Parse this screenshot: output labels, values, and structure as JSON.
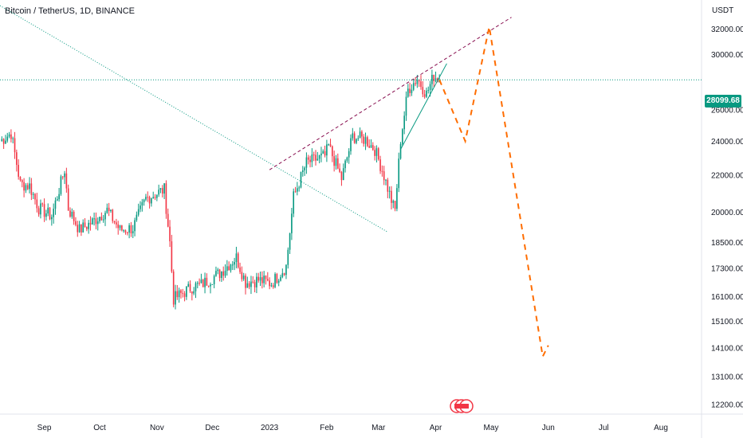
{
  "header": {
    "title": "Bitcoin / TetherUS, 1D, BINANCE",
    "unit": "USDT"
  },
  "price_badge": "28099.68",
  "colors": {
    "up": "#089981",
    "down": "#f23645",
    "projection": "#ff6d00",
    "channel": "#880e4f",
    "trendline": "#089981",
    "price_line": "#089981"
  },
  "chart_data": {
    "type": "candlestick",
    "title": "Bitcoin / TetherUS, 1D, BINANCE",
    "y_axis": {
      "unit": "USDT",
      "scale": "log",
      "ticks": [
        "32000.00",
        "30000.00",
        "26000.00",
        "24000.00",
        "22000.00",
        "20000.00",
        "18500.00",
        "17300.00",
        "16100.00",
        "15100.00",
        "14100.00",
        "13100.00",
        "12200.00"
      ],
      "range": [
        11900,
        34500
      ]
    },
    "x_axis": {
      "ticks": [
        "Sep",
        "Oct",
        "Nov",
        "Dec",
        "2023",
        "Feb",
        "Mar",
        "Apr",
        "May",
        "Jun",
        "Jul",
        "Aug"
      ],
      "tick_dates": [
        "2022-09-01",
        "2022-10-01",
        "2022-11-01",
        "2022-12-01",
        "2023-01-01",
        "2023-02-01",
        "2023-03-01",
        "2023-04-01",
        "2023-05-01",
        "2023-06-01",
        "2023-07-01",
        "2023-08-01"
      ],
      "range": [
        "2022-08-08",
        "2023-08-23"
      ]
    },
    "last_price": 28099.68,
    "price_path": [
      [
        "2022-08-08",
        24000
      ],
      [
        "2022-08-14",
        24500
      ],
      [
        "2022-08-19",
        21500
      ],
      [
        "2022-08-24",
        21400
      ],
      [
        "2022-08-29",
        20200
      ],
      [
        "2022-09-05",
        19800
      ],
      [
        "2022-09-12",
        22300
      ],
      [
        "2022-09-14",
        20200
      ],
      [
        "2022-09-20",
        19100
      ],
      [
        "2022-09-27",
        19500
      ],
      [
        "2022-10-05",
        20100
      ],
      [
        "2022-10-12",
        19100
      ],
      [
        "2022-10-19",
        19200
      ],
      [
        "2022-10-26",
        20700
      ],
      [
        "2022-11-05",
        21200
      ],
      [
        "2022-11-08",
        18500
      ],
      [
        "2022-11-10",
        16000
      ],
      [
        "2022-11-20",
        16500
      ],
      [
        "2022-11-25",
        16600
      ],
      [
        "2022-12-05",
        17100
      ],
      [
        "2022-12-14",
        17800
      ],
      [
        "2022-12-19",
        16700
      ],
      [
        "2022-12-26",
        16800
      ],
      [
        "2023-01-02",
        16650
      ],
      [
        "2023-01-10",
        17400
      ],
      [
        "2023-01-14",
        20800
      ],
      [
        "2023-01-21",
        22700
      ],
      [
        "2023-01-31",
        23100
      ],
      [
        "2023-02-02",
        23700
      ],
      [
        "2023-02-09",
        21800
      ],
      [
        "2023-02-15",
        24300
      ],
      [
        "2023-02-22",
        24100
      ],
      [
        "2023-02-27",
        23500
      ],
      [
        "2023-03-03",
        22300
      ],
      [
        "2023-03-09",
        20300
      ],
      [
        "2023-03-10",
        20100
      ],
      [
        "2023-03-13",
        24100
      ],
      [
        "2023-03-17",
        27400
      ],
      [
        "2023-03-22",
        28200
      ],
      [
        "2023-03-27",
        27100
      ],
      [
        "2023-03-31",
        28400
      ],
      [
        "2023-04-03",
        28100
      ]
    ],
    "annotations": [
      {
        "name": "descending-trendline",
        "style": "dotted",
        "points": [
          [
            "2022-08-08",
            34000
          ],
          [
            "2023-03-06",
            19000
          ]
        ]
      },
      {
        "name": "rising-channel-resistance",
        "style": "dashed",
        "points": [
          [
            "2023-01-01",
            22300
          ],
          [
            "2023-05-12",
            33000
          ]
        ]
      },
      {
        "name": "rising-support-line",
        "style": "solid",
        "points": [
          [
            "2023-03-13",
            23500
          ],
          [
            "2023-04-07",
            29300
          ]
        ]
      },
      {
        "name": "current-price-line",
        "style": "dotted",
        "value": 28099.68
      },
      {
        "name": "projected-path",
        "style": "dashed",
        "points": [
          [
            "2023-04-03",
            28100
          ],
          [
            "2023-04-17",
            24000
          ],
          [
            "2023-04-30",
            32200
          ],
          [
            "2023-05-29",
            13800
          ],
          [
            "2023-06-01",
            14200
          ]
        ]
      }
    ],
    "legend": "none",
    "grid": false
  }
}
